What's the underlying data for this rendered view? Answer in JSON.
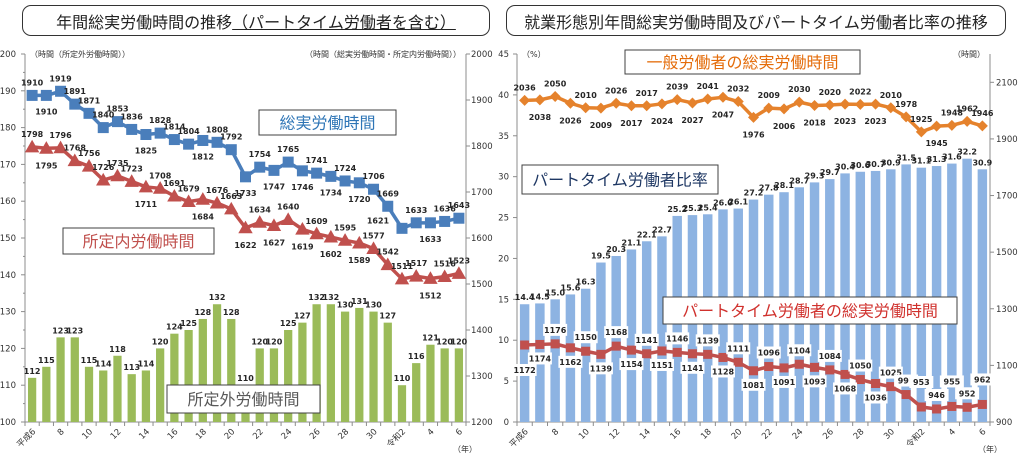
{
  "left_panel": {
    "title_main": "年間総実労働時間の推移",
    "title_sub": "（パートタイム労働者を含む）"
  },
  "right_panel": {
    "title": "就業形態別年間総実労働時間及びパートタイム労働者比率の推移"
  },
  "chart_data": [
    {
      "type": "bar+line",
      "title": "年間総実労働時間の推移（パートタイム労働者を含む）",
      "categories": [
        "平成6",
        "",
        "8",
        "",
        "10",
        "",
        "12",
        "",
        "14",
        "",
        "16",
        "",
        "18",
        "",
        "20",
        "",
        "22",
        "",
        "24",
        "",
        "26",
        "",
        "28",
        "",
        "30",
        "",
        "令和2",
        "",
        "4",
        "",
        "6"
      ],
      "xlabel": "（年）",
      "ylabel_left": "（時間（所定外労働時間））",
      "ylabel_right": "（時間（総実労働時間・所定内労働時間））",
      "ylim_left": [
        100,
        200
      ],
      "yticks_left": [
        100,
        110,
        120,
        130,
        140,
        150,
        160,
        170,
        180,
        190,
        200
      ],
      "ylim_right": [
        1200,
        2000
      ],
      "yticks_right": [
        1200,
        1300,
        1400,
        1500,
        1600,
        1700,
        1800,
        1900,
        2000
      ],
      "grid": false,
      "series": [
        {
          "name": "総実労働時間",
          "type": "line",
          "axis": "right",
          "marker": "square",
          "color": "#4a7ebb",
          "legend_color": "#2e75b6",
          "values": [
            1910,
            1910,
            1919,
            1891,
            1871,
            1840,
            1853,
            1836,
            1825,
            1828,
            1814,
            1804,
            1812,
            1808,
            1792,
            1733,
            1754,
            1747,
            1765,
            1746,
            1741,
            1734,
            1724,
            1720,
            1706,
            1669,
            1621,
            1633,
            1633,
            1636,
            1643
          ]
        },
        {
          "name": "所定内労働時間",
          "type": "line",
          "axis": "right",
          "marker": "triangle",
          "color": "#c0504d",
          "legend_color": "#c0504d",
          "values": [
            1798,
            1795,
            1796,
            1768,
            1756,
            1726,
            1735,
            1723,
            1711,
            1708,
            1691,
            1679,
            1684,
            1676,
            1663,
            1622,
            1634,
            1627,
            1640,
            1619,
            1609,
            1602,
            1595,
            1589,
            1577,
            1542,
            1511,
            1517,
            1512,
            1516,
            1523
          ]
        },
        {
          "name": "所定外労働時間",
          "type": "bar",
          "axis": "left",
          "color": "#9bbb59",
          "legend_color": "#595959",
          "values": [
            112,
            115,
            123,
            123,
            115,
            114,
            118,
            113,
            114,
            120,
            124,
            125,
            128,
            132,
            128,
            110,
            120,
            120,
            125,
            127,
            132,
            132,
            130,
            131,
            130,
            127,
            110,
            116,
            121,
            120,
            120
          ]
        }
      ]
    },
    {
      "type": "bar+line",
      "title": "就業形態別年間総実労働時間及びパートタイム労働者比率の推移",
      "categories": [
        "平成6",
        "",
        "8",
        "",
        "10",
        "",
        "12",
        "",
        "14",
        "",
        "16",
        "",
        "18",
        "",
        "20",
        "",
        "22",
        "",
        "24",
        "",
        "26",
        "",
        "28",
        "",
        "30",
        "",
        "令和2",
        "",
        "4",
        "",
        "6"
      ],
      "xlabel": "（年）",
      "ylabel_left": "（%）",
      "ylabel_right": "（時間）",
      "ylim_left": [
        0,
        45
      ],
      "yticks_left": [
        0,
        5,
        10,
        15,
        20,
        25,
        30,
        35,
        40,
        45
      ],
      "ylim_right": [
        900,
        2200
      ],
      "yticks_right": [
        900,
        1100,
        1300,
        1500,
        1700,
        1900,
        2100
      ],
      "grid": false,
      "series": [
        {
          "name": "パートタイム労働者比率",
          "type": "bar",
          "axis": "left",
          "color": "#8db3e2",
          "legend_color": "#1f3864",
          "values": [
            14.4,
            14.5,
            15.0,
            15.6,
            16.3,
            19.5,
            20.3,
            21.1,
            22.1,
            22.7,
            25.2,
            25.3,
            25.4,
            26.0,
            26.1,
            27.2,
            27.8,
            28.1,
            28.7,
            29.3,
            29.7,
            30.4,
            30.6,
            30.7,
            30.9,
            31.5,
            31.1,
            31.3,
            31.6,
            32.2,
            30.9
          ],
          "labels": [
            "14.4",
            "14.5",
            "15.0",
            "15.6",
            "16.3",
            "19.5",
            "20.3",
            "21.1",
            "22.1",
            "22.7",
            "25.2",
            "25.3",
            "25.4",
            "26.0",
            "26.1",
            "27.2",
            "27.8",
            "28.1",
            "28.7",
            "29.3",
            "29.7",
            "30.4",
            "30.6",
            "30.7",
            "30.9",
            "31.5",
            "31.1",
            "31.3",
            "31.6",
            "32.2",
            "30.9"
          ]
        },
        {
          "name": "一般労働者の総実労働時間",
          "type": "line",
          "axis": "right",
          "marker": "diamond",
          "color": "#e5822c",
          "legend_color": "#e46c0a",
          "values": [
            2036,
            2038,
            2050,
            2026,
            2010,
            2009,
            2026,
            2017,
            2017,
            2024,
            2039,
            2027,
            2041,
            2047,
            2032,
            1976,
            2009,
            2006,
            2030,
            2018,
            2020,
            2023,
            2022,
            2023,
            2010,
            1978,
            1925,
            1945,
            1948,
            1962,
            1946
          ]
        },
        {
          "name": "パートタイム労働者の総実労働時間",
          "type": "line",
          "axis": "right",
          "marker": "square",
          "color": "#c0504d",
          "legend_color": "#d0312d",
          "values": [
            1172,
            1174,
            1176,
            1162,
            1150,
            1139,
            1168,
            1154,
            1141,
            1151,
            1146,
            1141,
            1139,
            1128,
            1111,
            1081,
            1096,
            1091,
            1104,
            1093,
            1084,
            1068,
            1050,
            1036,
            1025,
            997,
            953,
            946,
            955,
            952,
            962
          ]
        }
      ]
    }
  ]
}
